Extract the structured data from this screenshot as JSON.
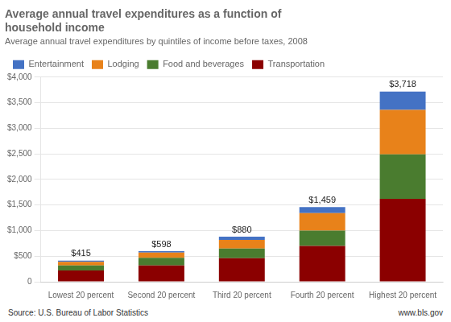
{
  "chart_data": {
    "type": "bar",
    "stacked": true,
    "title": "Average annual travel expenditures as a function of\nhousehold income",
    "subtitle": "Average annual travel expenditures by quintiles of income before taxes, 2008",
    "annotations": [
      "Source: U.S. Bureau of Labor Statistics",
      "www.bls.gov"
    ],
    "categories": [
      "Lowest 20 percent",
      "Second 20 percent",
      "Third 20 percent",
      "Fourth 20 percent",
      "Highest 20 percent"
    ],
    "series": [
      {
        "name": "Transportation",
        "color": "#8B0000",
        "values": [
          220,
          320,
          460,
          700,
          1620
        ]
      },
      {
        "name": "Food and beverages",
        "color": "#4A7C2F",
        "values": [
          100,
          150,
          190,
          300,
          870
        ]
      },
      {
        "name": "Lodging",
        "color": "#E8821A",
        "values": [
          70,
          100,
          170,
          340,
          870
        ]
      },
      {
        "name": "Entertainment",
        "color": "#4472C4",
        "values": [
          25,
          28,
          60,
          119,
          358
        ]
      }
    ],
    "totals": [
      415,
      598,
      880,
      1459,
      3718
    ],
    "total_labels": [
      "$415",
      "$598",
      "$880",
      "$1,459",
      "$3,718"
    ],
    "ylim": [
      0,
      4000
    ],
    "yticks": [
      0,
      {
        "value": 500,
        "label": "$500"
      },
      {
        "value": 1000,
        "label": "$1,000"
      },
      {
        "value": 1500,
        "label": "$1,500"
      },
      {
        "value": 2000,
        "label": "$2,000"
      },
      {
        "value": 2500,
        "label": "$2,500"
      },
      {
        "value": 3000,
        "label": "$3,000"
      },
      {
        "value": 3500,
        "label": "$3,500"
      },
      {
        "value": 4000,
        "label": "$4,000"
      }
    ],
    "grid": true,
    "legend": "upper left"
  }
}
